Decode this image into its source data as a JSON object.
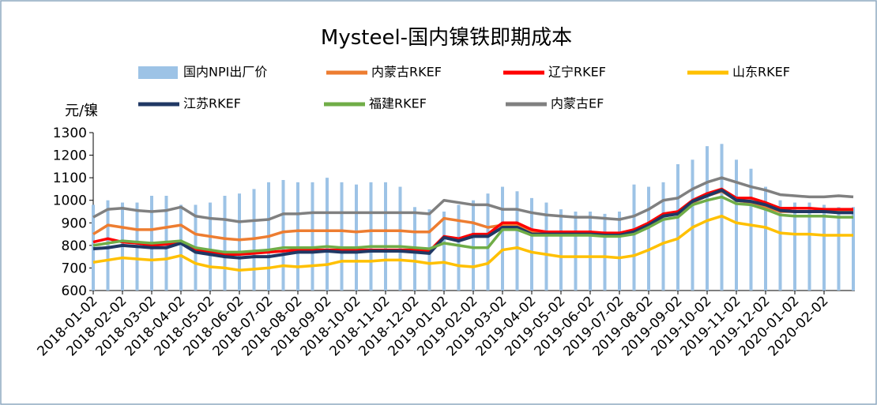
{
  "chart_data": {
    "type": "bar-line",
    "title": "Mysteel-国内镍铁即期成本",
    "y_label": "元/镍",
    "categories": [
      "2018-01-02",
      null,
      "2018-02-02",
      null,
      "2018-03-02",
      null,
      "2018-04-02",
      null,
      "2018-05-02",
      null,
      "2018-06-02",
      null,
      "2018-07-02",
      null,
      "2018-08-02",
      null,
      "2018-09-02",
      null,
      "2018-10-02",
      null,
      "2018-11-02",
      null,
      "2018-12-02",
      null,
      "2019-01-02",
      null,
      "2019-02-02",
      null,
      "2019-03-02",
      null,
      "2019-04-02",
      null,
      "2019-05-02",
      null,
      "2019-06-02",
      null,
      "2019-07-02",
      null,
      "2019-08-02",
      null,
      "2019-09-02",
      null,
      "2019-10-02",
      null,
      "2019-11-02",
      null,
      "2019-12-02",
      null,
      "2020-01-02",
      null,
      "2020-02-02",
      null,
      null
    ],
    "ylim": [
      600,
      1300
    ],
    "yticks": [
      600,
      700,
      800,
      900,
      1000,
      1100,
      1200,
      1300
    ],
    "series": [
      {
        "name": "国内NPI出厂价",
        "kind": "bar",
        "color": "#9dc3e6",
        "values": [
          980,
          1000,
          990,
          990,
          1020,
          1020,
          980,
          980,
          990,
          1020,
          1030,
          1050,
          1080,
          1090,
          1080,
          1080,
          1100,
          1080,
          1070,
          1080,
          1080,
          1060,
          970,
          960,
          950,
          980,
          1000,
          1030,
          1060,
          1040,
          1010,
          990,
          960,
          950,
          950,
          940,
          950,
          1070,
          1060,
          1080,
          1160,
          1180,
          1240,
          1250,
          1180,
          1140,
          1060,
          1000,
          990,
          990,
          980,
          970,
          970
        ]
      },
      {
        "name": "内蒙古RKEF",
        "kind": "line",
        "color": "#ed7d31",
        "values": [
          850,
          890,
          880,
          870,
          870,
          880,
          890,
          850,
          840,
          830,
          825,
          830,
          840,
          860,
          865,
          865,
          865,
          865,
          860,
          865,
          865,
          865,
          860,
          860,
          920,
          910,
          900,
          880,
          890,
          890,
          860,
          855,
          855,
          855,
          855,
          850,
          850,
          860,
          890,
          930,
          940,
          990,
          1020,
          1040,
          1000,
          990,
          970,
          950,
          950,
          950,
          950,
          950,
          950
        ]
      },
      {
        "name": "辽宁RKEF",
        "kind": "line",
        "color": "#ff0000",
        "values": [
          815,
          830,
          815,
          810,
          800,
          805,
          815,
          780,
          770,
          760,
          760,
          765,
          770,
          775,
          780,
          780,
          780,
          780,
          780,
          780,
          780,
          780,
          780,
          775,
          840,
          830,
          850,
          850,
          900,
          900,
          870,
          860,
          860,
          860,
          860,
          855,
          855,
          870,
          900,
          940,
          950,
          1000,
          1030,
          1050,
          1010,
          1010,
          990,
          965,
          965,
          965,
          960,
          960,
          960
        ]
      },
      {
        "name": "山东RKEF",
        "kind": "line",
        "color": "#ffc000",
        "values": [
          725,
          735,
          745,
          740,
          735,
          740,
          755,
          720,
          705,
          700,
          690,
          695,
          700,
          710,
          705,
          710,
          715,
          730,
          730,
          730,
          735,
          735,
          730,
          720,
          725,
          710,
          705,
          720,
          780,
          790,
          770,
          760,
          750,
          750,
          750,
          750,
          745,
          755,
          780,
          810,
          830,
          880,
          910,
          930,
          900,
          890,
          880,
          855,
          850,
          850,
          845,
          845,
          845
        ]
      },
      {
        "name": "江苏RKEF",
        "kind": "line",
        "color": "#203864",
        "values": [
          785,
          790,
          800,
          795,
          790,
          790,
          810,
          770,
          760,
          750,
          745,
          750,
          750,
          760,
          770,
          770,
          775,
          770,
          770,
          775,
          775,
          775,
          770,
          765,
          835,
          820,
          840,
          840,
          880,
          880,
          850,
          850,
          850,
          850,
          850,
          845,
          845,
          860,
          890,
          930,
          940,
          995,
          1020,
          1045,
          1000,
          995,
          980,
          955,
          950,
          950,
          950,
          945,
          945
        ]
      },
      {
        "name": "福建RKEF",
        "kind": "line",
        "color": "#70ad47",
        "values": [
          800,
          810,
          820,
          815,
          810,
          815,
          820,
          790,
          780,
          770,
          770,
          775,
          780,
          790,
          790,
          790,
          795,
          790,
          790,
          795,
          795,
          795,
          790,
          785,
          810,
          800,
          790,
          790,
          870,
          870,
          845,
          845,
          845,
          845,
          845,
          840,
          840,
          850,
          880,
          915,
          925,
          980,
          1000,
          1015,
          985,
          980,
          960,
          935,
          930,
          930,
          930,
          925,
          925
        ]
      },
      {
        "name": "内蒙古EF",
        "kind": "line",
        "color": "#808080",
        "values": [
          925,
          960,
          965,
          955,
          950,
          955,
          970,
          930,
          920,
          915,
          905,
          910,
          915,
          940,
          940,
          945,
          945,
          945,
          945,
          945,
          945,
          945,
          945,
          940,
          1000,
          990,
          980,
          980,
          960,
          960,
          945,
          935,
          930,
          925,
          925,
          920,
          915,
          930,
          960,
          1000,
          1010,
          1050,
          1080,
          1100,
          1080,
          1060,
          1045,
          1025,
          1020,
          1015,
          1015,
          1020,
          1015
        ]
      }
    ]
  }
}
